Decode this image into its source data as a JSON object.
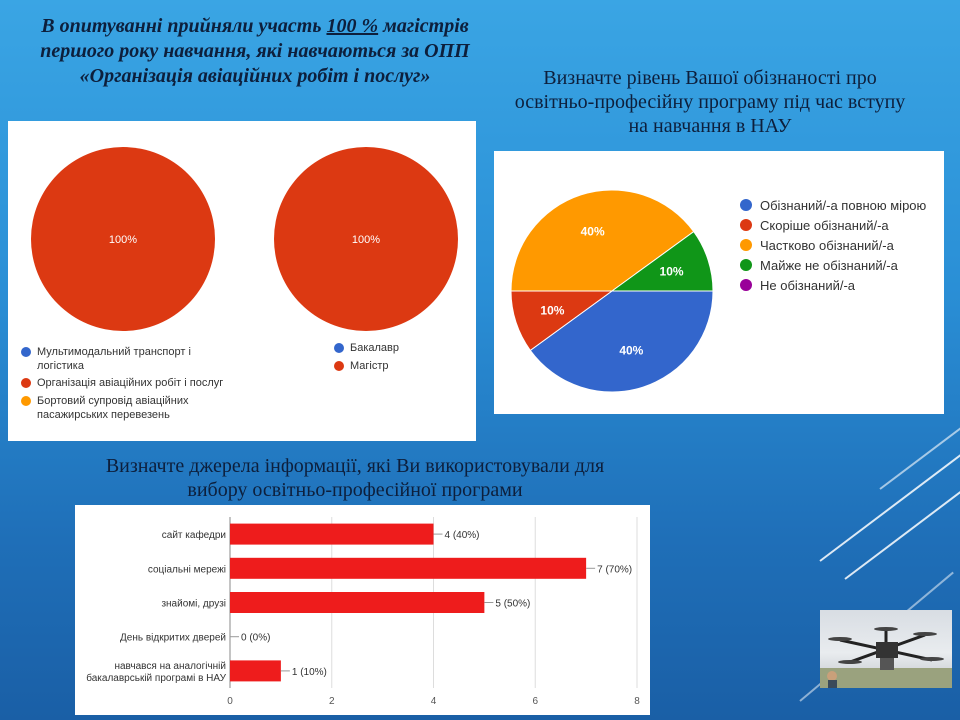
{
  "titles": {
    "left_pre": "В опитуванні прийняли участь ",
    "left_u": "100 %",
    "left_post": " магістрів першого року навчання, які навчаються за ОПП «Організація авіаційних робіт і послуг»",
    "right": "Визначте рівень Вашої обізнаності про освітньо-професійну програму під час вступу на навчання в НАУ",
    "bottom": "Визначте джерела інформації, які Ви використовували для вибору освітньо-професійної програми"
  },
  "chart_data": [
    {
      "type": "pie",
      "labels": [
        "Мультимодальний транспорт і логістика",
        "Організація авіаційних робіт і послуг",
        "Бортовий супровід авіаційних пасажирських перевезень"
      ],
      "values": [
        0,
        100,
        0
      ],
      "data_labels": [
        "",
        "100%",
        ""
      ],
      "colors": [
        "#3366cc",
        "#dc3912",
        "#ff9900"
      ],
      "legend": "bottom"
    },
    {
      "type": "pie",
      "labels": [
        "Бакалавр",
        "Магістр"
      ],
      "values": [
        0,
        100
      ],
      "data_labels": [
        "",
        "100%"
      ],
      "colors": [
        "#3366cc",
        "#dc3912"
      ],
      "legend": "bottom"
    },
    {
      "type": "pie",
      "labels": [
        "Обізнаний/-а повною мірою",
        "Скоріше обізнаний/-а",
        "Частково обізнаний/-а",
        "Майже не обізнаний/-а",
        "Не обізнаний/-а"
      ],
      "values": [
        40,
        10,
        40,
        10,
        0
      ],
      "data_labels": [
        "40%",
        "10%",
        "40%",
        "10%",
        ""
      ],
      "colors": [
        "#3366cc",
        "#dc3912",
        "#ff9900",
        "#109618",
        "#990099"
      ],
      "legend": "right"
    },
    {
      "type": "bar",
      "orientation": "horizontal",
      "categories": [
        "сайт кафедри",
        "соціальні мережі",
        "знайомі, друзі",
        "День відкритих дверей",
        "навчався на аналогічній бакалаврській програмі в НАУ"
      ],
      "values": [
        4,
        7,
        5,
        0,
        1
      ],
      "data_labels": [
        "4 (40%)",
        "7 (70%)",
        "5 (50%)",
        "0 (0%)",
        "1 (10%)"
      ],
      "xlim": [
        0,
        8
      ],
      "xticks": [
        "0",
        "2",
        "4",
        "6",
        "8"
      ],
      "color": "#ee1c1c",
      "grid": true
    }
  ],
  "photo": {
    "icon": "drone-photo"
  }
}
